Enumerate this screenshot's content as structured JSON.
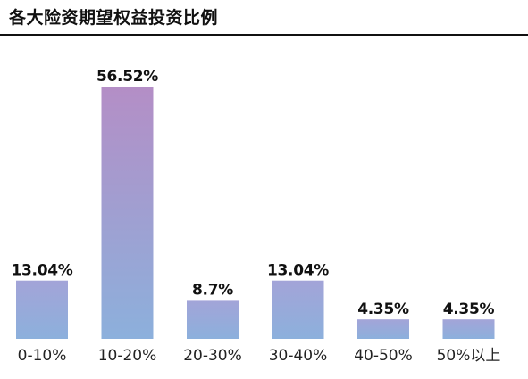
{
  "title": "各大险资期望权益投资比例",
  "chart_data": {
    "type": "bar",
    "title": "各大险资期望权益投资比例",
    "xlabel": "",
    "ylabel": "",
    "ylim": [
      0,
      60
    ],
    "grid": false,
    "categories": [
      "0-10%",
      "10-20%",
      "20-30%",
      "30-40%",
      "40-50%",
      "50%以上"
    ],
    "values": [
      13.04,
      56.52,
      8.7,
      13.04,
      4.35,
      4.35
    ],
    "value_labels": [
      "13.04%",
      "56.52%",
      "8.7%",
      "13.04%",
      "4.35%",
      "4.35%"
    ],
    "colors": {
      "bar_top_tall": "#b48ec6",
      "bar_top_short": "#a3a4d8",
      "bar_bottom": "#8cb0dc"
    }
  }
}
